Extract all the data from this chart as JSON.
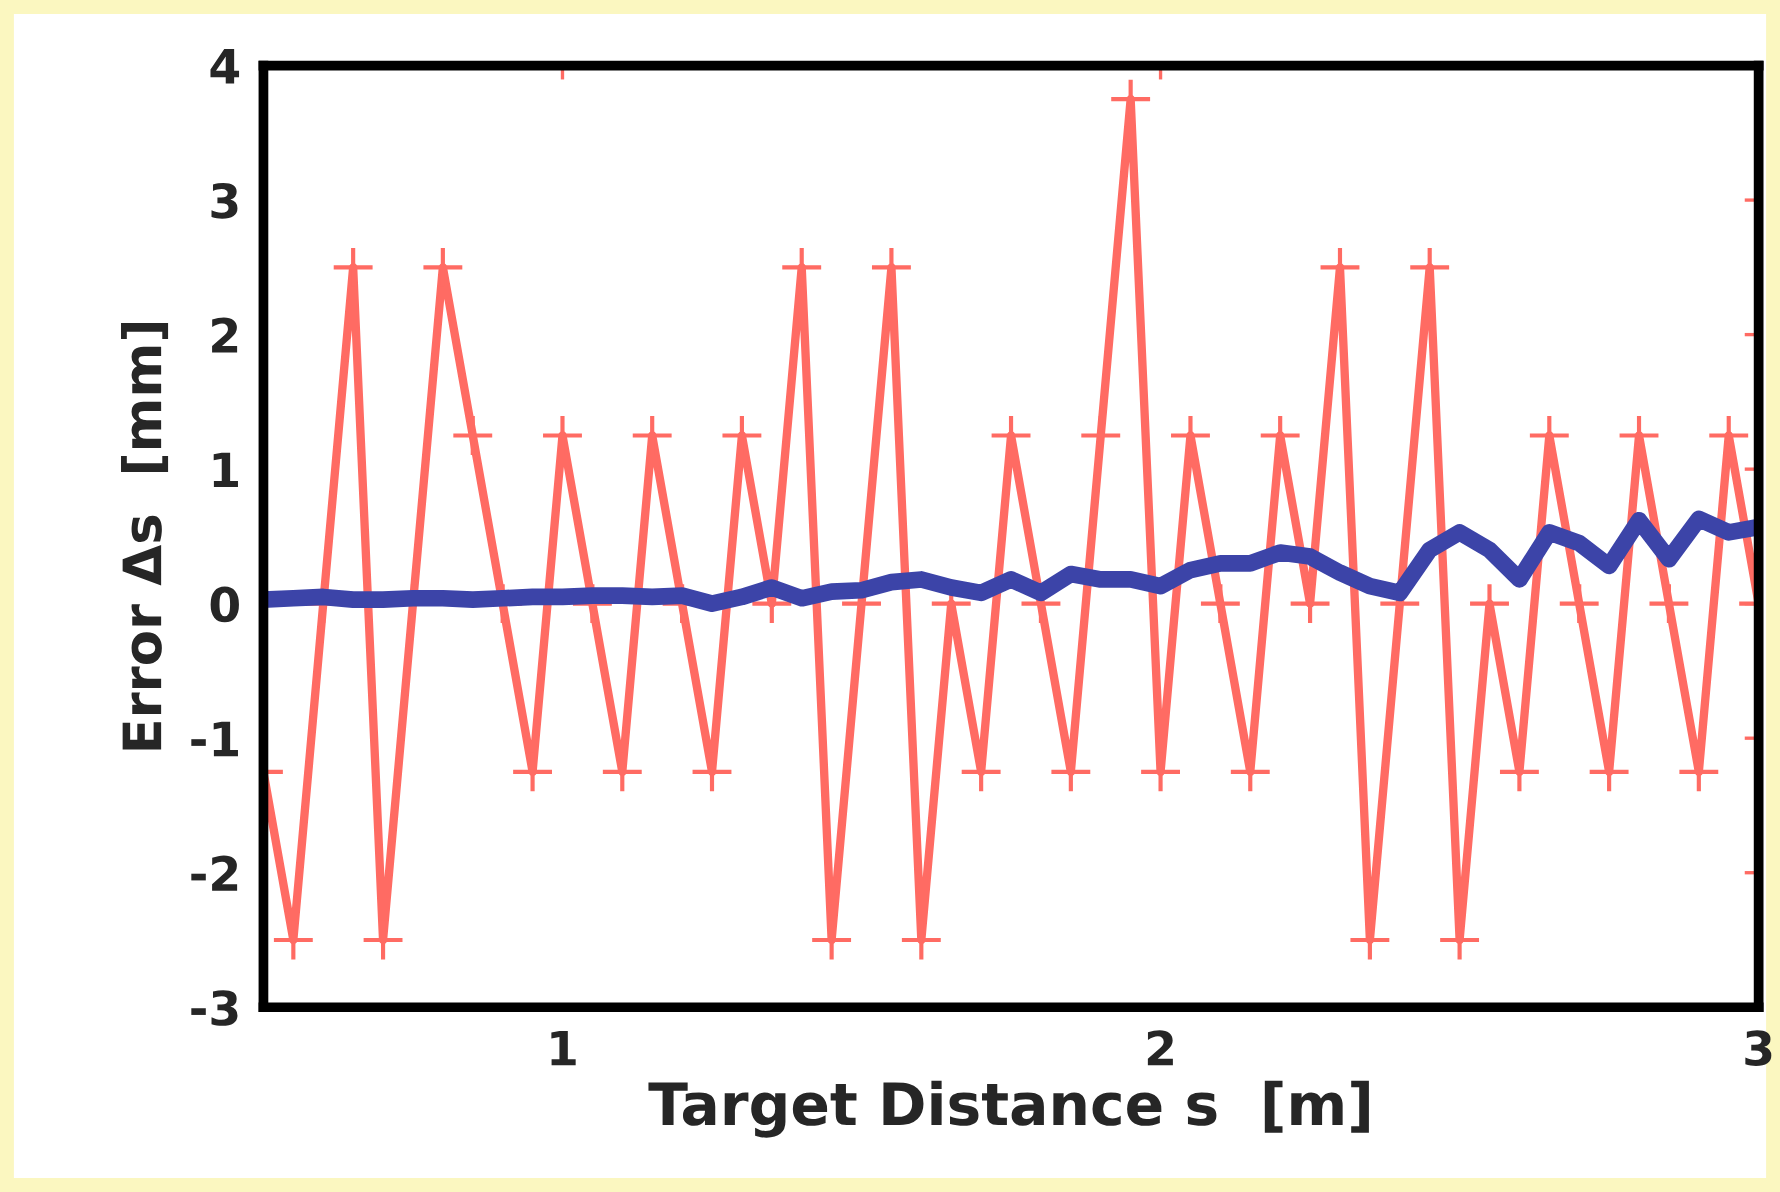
{
  "chart_data": {
    "type": "line",
    "xlabel": "Target Distance s  [m]",
    "ylabel": "Error Δs  [mm]",
    "x": [
      0.5,
      0.55,
      0.6,
      0.65,
      0.7,
      0.75,
      0.8,
      0.85,
      0.9,
      0.95,
      1.0,
      1.05,
      1.1,
      1.15,
      1.2,
      1.25,
      1.3,
      1.35,
      1.4,
      1.45,
      1.5,
      1.55,
      1.6,
      1.65,
      1.7,
      1.75,
      1.8,
      1.85,
      1.9,
      1.95,
      2.0,
      2.05,
      2.1,
      2.15,
      2.2,
      2.25,
      2.3,
      2.35,
      2.4,
      2.45,
      2.5,
      2.55,
      2.6,
      2.65,
      2.7,
      2.75,
      2.8,
      2.85,
      2.9,
      2.95,
      3.0
    ],
    "series": [
      {
        "color": "#ff6b63",
        "marker": "cross",
        "values": [
          -1.25,
          -2.5,
          0,
          2.5,
          -2.5,
          0,
          2.5,
          1.25,
          0,
          -1.25,
          1.25,
          0,
          -1.25,
          1.25,
          0,
          -1.25,
          1.25,
          0,
          2.5,
          -2.5,
          0,
          2.5,
          -2.5,
          0,
          -1.25,
          1.25,
          0,
          -1.25,
          1.25,
          3.75,
          -1.25,
          1.25,
          0,
          -1.25,
          1.25,
          0,
          2.5,
          -2.5,
          0,
          2.5,
          -2.5,
          0,
          -1.25,
          1.25,
          0,
          -1.25,
          1.25,
          0,
          -1.25,
          1.25,
          0
        ]
      },
      {
        "color": "#3c44a8",
        "marker": "none",
        "values": [
          0.03,
          0.04,
          0.05,
          0.03,
          0.03,
          0.04,
          0.04,
          0.03,
          0.04,
          0.05,
          0.05,
          0.06,
          0.06,
          0.05,
          0.06,
          0.0,
          0.05,
          0.12,
          0.04,
          0.09,
          0.1,
          0.16,
          0.18,
          0.12,
          0.08,
          0.18,
          0.08,
          0.22,
          0.18,
          0.18,
          0.13,
          0.25,
          0.3,
          0.3,
          0.38,
          0.35,
          0.23,
          0.13,
          0.08,
          0.4,
          0.53,
          0.4,
          0.18,
          0.53,
          0.45,
          0.28,
          0.62,
          0.33,
          0.63,
          0.53,
          0.57
        ]
      }
    ],
    "xlim": [
      0.5,
      3
    ],
    "xticks": [
      1,
      2,
      3
    ],
    "ylim": [
      -3,
      4
    ],
    "yticks": [
      -3,
      -2,
      -1,
      0,
      1,
      2,
      3,
      4
    ],
    "grid": false,
    "legend": false,
    "line_style": "solid"
  }
}
